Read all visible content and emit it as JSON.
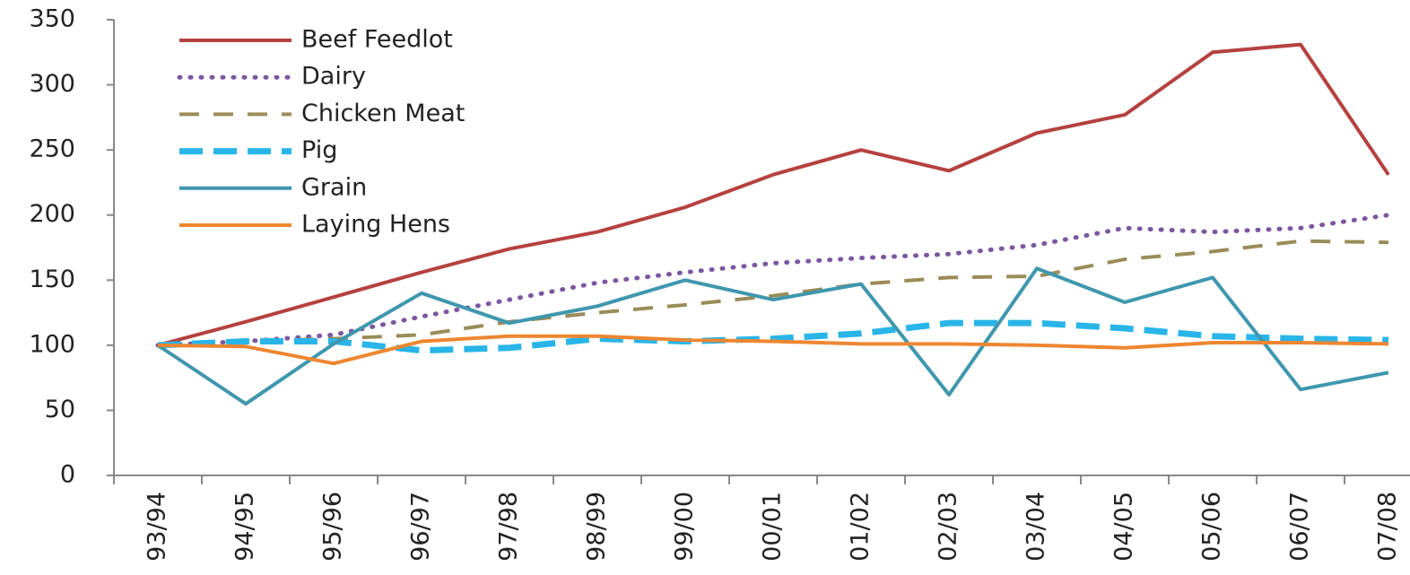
{
  "chart_data": {
    "type": "line",
    "categories": [
      "93/94",
      "94/95",
      "95/96",
      "96/97",
      "97/98",
      "98/99",
      "99/00",
      "00/01",
      "01/02",
      "02/03",
      "03/04",
      "04/05",
      "05/06",
      "06/07",
      "07/08"
    ],
    "series": [
      {
        "name": "Beef Feedlot",
        "color": "#b5413f",
        "style": "solid",
        "values": [
          100,
          118,
          137,
          156,
          174,
          187,
          206,
          231,
          250,
          234,
          263,
          277,
          325,
          331,
          231
        ]
      },
      {
        "name": "Dairy",
        "color": "#7b57a0",
        "style": "dotted",
        "values": [
          100,
          103,
          108,
          122,
          135,
          148,
          156,
          163,
          167,
          170,
          177,
          190,
          187,
          190,
          200
        ]
      },
      {
        "name": "Chicken Meat",
        "color": "#998c58",
        "style": "dashed",
        "values": [
          100,
          103,
          105,
          108,
          118,
          125,
          131,
          138,
          147,
          152,
          153,
          166,
          172,
          180,
          179
        ]
      },
      {
        "name": "Pig",
        "color": "#29b5e8",
        "style": "thick-dashed",
        "values": [
          100,
          103,
          103,
          96,
          98,
          105,
          103,
          105,
          109,
          117,
          117,
          113,
          107,
          105,
          104
        ]
      },
      {
        "name": "Grain",
        "color": "#3e97ad",
        "style": "solid",
        "values": [
          100,
          55,
          101,
          140,
          117,
          130,
          150,
          135,
          147,
          62,
          159,
          133,
          152,
          66,
          79
        ]
      },
      {
        "name": "Laying Hens",
        "color": "#ee8630",
        "style": "solid",
        "values": [
          100,
          99,
          86,
          103,
          107,
          107,
          104,
          103,
          101,
          101,
          100,
          98,
          102,
          102,
          101
        ]
      }
    ],
    "ylim": [
      0,
      350
    ],
    "yticks": [
      0,
      50,
      100,
      150,
      200,
      250,
      300,
      350
    ],
    "grid": false,
    "legend": "top-left"
  }
}
